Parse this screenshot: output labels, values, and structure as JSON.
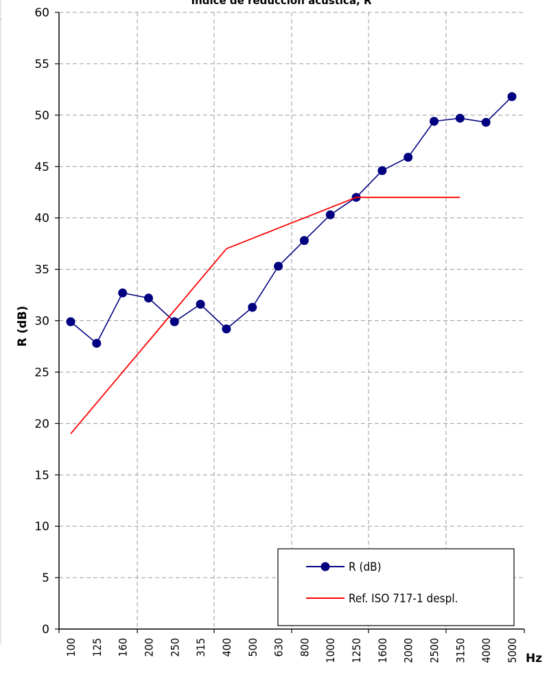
{
  "chart_data": {
    "type": "line",
    "title": "Índice de reducción acústica, R",
    "xlabel": "Hz",
    "ylabel": "R (dB)",
    "categories": [
      "100",
      "125",
      "160",
      "200",
      "250",
      "315",
      "400",
      "500",
      "630",
      "800",
      "1000",
      "1250",
      "1600",
      "2000",
      "2500",
      "3150",
      "4000",
      "5000"
    ],
    "ylim": [
      0,
      60
    ],
    "yticks": [
      0,
      5,
      10,
      15,
      20,
      25,
      30,
      35,
      40,
      45,
      50,
      55,
      60
    ],
    "grid": true,
    "legend_position": "bottom-right",
    "series": [
      {
        "name": "R (dB)",
        "color": "#000080",
        "marker": "circle",
        "values": [
          29.9,
          27.8,
          32.7,
          32.2,
          29.9,
          31.6,
          29.2,
          31.3,
          35.3,
          37.8,
          40.3,
          42.0,
          44.6,
          45.9,
          49.4,
          49.7,
          49.3,
          51.8
        ]
      },
      {
        "name": "Ref. ISO 717-1 despl.",
        "color": "#ff0000",
        "marker": "none",
        "values": [
          19,
          22,
          25,
          28,
          31,
          34,
          37,
          38,
          39,
          40,
          41,
          42,
          42,
          42,
          42,
          42,
          null,
          null
        ]
      }
    ]
  }
}
